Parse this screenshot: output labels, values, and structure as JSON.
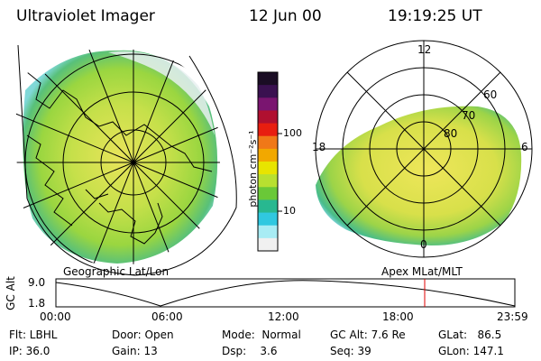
{
  "header": {
    "title": "Ultraviolet Imager",
    "date": "12 Jun 00",
    "time": "19:19:25 UT"
  },
  "colorbar": {
    "unit_label": "photon cm⁻²s⁻¹",
    "ticks": [
      "100",
      "10"
    ],
    "colors": [
      "#1a0d24",
      "#3a1150",
      "#7a1570",
      "#b01030",
      "#e81e10",
      "#f07818",
      "#f2a800",
      "#e8e400",
      "#b8e030",
      "#6ac838",
      "#28b890",
      "#30c8e0",
      "#a8ecf4",
      "#f0f0f0"
    ]
  },
  "left_map": {
    "label": "Geographic Lat/Lon"
  },
  "right_map": {
    "label": "Apex MLat/MLT",
    "mlt_labels": {
      "top": "12",
      "left": "18",
      "right": "6",
      "bottom": "0"
    },
    "mlat_labels": [
      "60",
      "70",
      "80"
    ]
  },
  "altitude_plot": {
    "ylabel": "GC Alt",
    "ymax_label": "9.0",
    "ymin_label": "1.8",
    "x_ticks": [
      "00:00",
      "06:00",
      "12:00",
      "18:00",
      "23:59"
    ],
    "marker_color": "#e00000"
  },
  "info": {
    "filter": "Flt: LBHL",
    "ip": "IP: 36.0",
    "door": "Door: Open",
    "gain": "Gain: 13",
    "mode": "Mode:  Normal",
    "dsp": "Dsp:    3.6",
    "gc_alt": "GC Alt: 7.6 Re",
    "seq": "Seq: 39",
    "glat": "GLat:   86.5",
    "glon": "GLon: 147.1"
  }
}
